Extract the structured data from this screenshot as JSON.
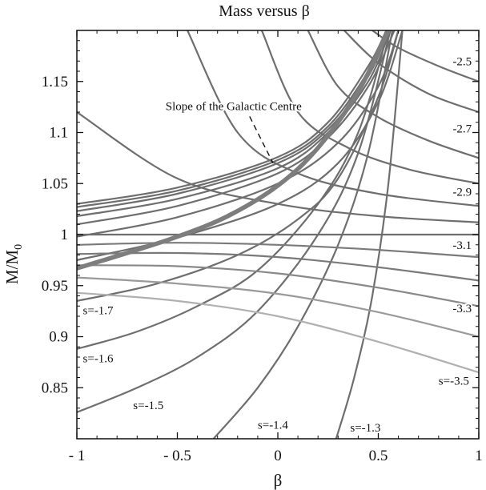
{
  "chart_data": {
    "type": "line",
    "title": "Mass versus β",
    "xlabel": "β",
    "ylabel": "M/M",
    "ylabel_sub": "0",
    "xlim": [
      -1,
      1
    ],
    "ylim": [
      0.8,
      1.2
    ],
    "xticks": [
      -1,
      -0.5,
      0,
      0.5,
      1
    ],
    "xtick_labels": [
      "- 1",
      "- 0.5",
      "0",
      "0.5",
      "1"
    ],
    "yticks": [
      0.85,
      0.9,
      0.95,
      1,
      1.05,
      1.1,
      1.15
    ],
    "ytick_labels": [
      "0.85",
      "0.9",
      "0.95",
      "1",
      "1.05",
      "1.1",
      "1.15"
    ],
    "grid": false,
    "annotation": {
      "text": "Slope of the Galactic Centre",
      "x": -0.22,
      "y": 1.122,
      "arrow_to": [
        0.0,
        1.07
      ]
    },
    "highlighted_series": {
      "name": "",
      "color": "#7d7d7d",
      "x": [
        -1,
        -0.75,
        -0.5,
        -0.25,
        0,
        0.2,
        0.4,
        0.55
      ],
      "y": [
        0.967,
        0.982,
        0.998,
        1.018,
        1.048,
        1.085,
        1.14,
        1.2
      ]
    },
    "series": [
      {
        "label": "s=-1.3",
        "color": "#6e6e6e",
        "x": [
          0.29,
          0.38,
          0.47,
          0.55,
          0.62
        ],
        "y": [
          0.8,
          0.86,
          0.94,
          1.05,
          1.2
        ]
      },
      {
        "label": "s=-1.4",
        "color": "#6e6e6e",
        "x": [
          -0.32,
          -0.1,
          0.1,
          0.3,
          0.45,
          0.57
        ],
        "y": [
          0.8,
          0.85,
          0.91,
          0.99,
          1.08,
          1.2
        ]
      },
      {
        "label": "s=-1.5",
        "color": "#6e6e6e",
        "x": [
          -1,
          -0.7,
          -0.4,
          -0.1,
          0.2,
          0.4,
          0.56
        ],
        "y": [
          0.826,
          0.85,
          0.88,
          0.925,
          1.0,
          1.08,
          1.2
        ]
      },
      {
        "label": "s=-1.6",
        "color": "#6e6e6e",
        "x": [
          -1,
          -0.7,
          -0.4,
          -0.1,
          0.2,
          0.4,
          0.55
        ],
        "y": [
          0.888,
          0.905,
          0.93,
          0.965,
          1.03,
          1.1,
          1.2
        ]
      },
      {
        "label": "s=-1.7",
        "color": "#6e6e6e",
        "x": [
          -1,
          -0.6,
          -0.2,
          0.1,
          0.3,
          0.5,
          0.6
        ],
        "y": [
          0.935,
          0.952,
          0.98,
          1.015,
          1.055,
          1.135,
          1.2
        ]
      },
      {
        "label": "",
        "color": "#6e6e6e",
        "x": [
          -1,
          -0.5,
          0,
          0.3,
          0.5,
          0.62
        ],
        "y": [
          0.975,
          0.997,
          1.03,
          1.07,
          1.13,
          1.2
        ]
      },
      {
        "label": "",
        "color": "#6e6e6e",
        "x": [
          -1,
          -0.5,
          0,
          0.3,
          0.5,
          0.6
        ],
        "y": [
          0.998,
          1.017,
          1.05,
          1.09,
          1.145,
          1.2
        ]
      },
      {
        "label": "",
        "color": "#6e6e6e",
        "x": [
          -1,
          -0.5,
          0,
          0.25,
          0.45,
          0.58
        ],
        "y": [
          1.01,
          1.028,
          1.06,
          1.095,
          1.145,
          1.2
        ]
      },
      {
        "label": "",
        "color": "#6e6e6e",
        "x": [
          -1,
          -0.5,
          0,
          0.25,
          0.45,
          0.56
        ],
        "y": [
          1.018,
          1.035,
          1.065,
          1.1,
          1.15,
          1.2
        ]
      },
      {
        "label": "",
        "color": "#6e6e6e",
        "x": [
          -1,
          -0.5,
          0,
          0.25,
          0.45,
          0.55
        ],
        "y": [
          1.023,
          1.04,
          1.07,
          1.103,
          1.155,
          1.2
        ]
      },
      {
        "label": "",
        "color": "#6e6e6e",
        "x": [
          -1,
          -0.5,
          0,
          0.25,
          0.45,
          0.54
        ],
        "y": [
          1.027,
          1.043,
          1.073,
          1.106,
          1.16,
          1.2
        ]
      },
      {
        "label": "",
        "color": "#6e6e6e",
        "x": [
          -1,
          -0.5,
          0,
          0.25,
          0.45,
          0.54
        ],
        "y": [
          1.03,
          1.046,
          1.076,
          1.11,
          1.165,
          1.2
        ]
      },
      {
        "label": "-2.5",
        "color": "#6e6e6e",
        "x": [
          0.47,
          0.6,
          0.8,
          1.0
        ],
        "y": [
          1.2,
          1.183,
          1.165,
          1.15
        ]
      },
      {
        "label": "",
        "color": "#6e6e6e",
        "x": [
          0.33,
          0.5,
          0.75,
          1.0
        ],
        "y": [
          1.2,
          1.168,
          1.138,
          1.12
        ]
      },
      {
        "label": "-2.7",
        "color": "#6e6e6e",
        "x": [
          0.15,
          0.3,
          0.5,
          0.75,
          1.0
        ],
        "y": [
          1.2,
          1.145,
          1.115,
          1.092,
          1.075
        ]
      },
      {
        "label": "",
        "color": "#6e6e6e",
        "x": [
          -0.08,
          0.1,
          0.35,
          0.65,
          1.0
        ],
        "y": [
          1.2,
          1.12,
          1.085,
          1.064,
          1.05
        ]
      },
      {
        "label": "-2.9",
        "color": "#6e6e6e",
        "x": [
          -0.45,
          -0.2,
          0.1,
          0.5,
          1.0
        ],
        "y": [
          1.2,
          1.1,
          1.06,
          1.04,
          1.028
        ]
      },
      {
        "label": "",
        "color": "#6e6e6e",
        "x": [
          -1,
          -0.5,
          0,
          0.5,
          1.0
        ],
        "y": [
          1.12,
          1.055,
          1.03,
          1.018,
          1.012
        ]
      },
      {
        "label": "-3.1",
        "color": "#6e6e6e",
        "x": [
          -1,
          1
        ],
        "y": [
          1.0,
          1.0
        ]
      },
      {
        "label": "",
        "color": "#7a7a7a",
        "x": [
          -1,
          -0.5,
          0,
          0.5,
          1.0
        ],
        "y": [
          0.99,
          0.992,
          0.99,
          0.985,
          0.978
        ]
      },
      {
        "label": "",
        "color": "#7a7a7a",
        "x": [
          -1,
          -0.5,
          0,
          0.5,
          1.0
        ],
        "y": [
          0.981,
          0.982,
          0.978,
          0.968,
          0.955
        ]
      },
      {
        "label": "-3.3",
        "color": "#888888",
        "x": [
          -1,
          -0.5,
          0,
          0.5,
          1.0
        ],
        "y": [
          0.97,
          0.969,
          0.962,
          0.948,
          0.93
        ]
      },
      {
        "label": "",
        "color": "#9a9a9a",
        "x": [
          -1,
          -0.5,
          0,
          0.5,
          1.0
        ],
        "y": [
          0.958,
          0.952,
          0.942,
          0.924,
          0.9
        ]
      },
      {
        "label": "-3.5",
        "color": "#b0b0b0",
        "x": [
          -1,
          -0.5,
          0,
          0.5,
          1.0
        ],
        "y": [
          0.943,
          0.935,
          0.92,
          0.895,
          0.865
        ]
      }
    ],
    "curve_labels": [
      {
        "text": "s=-1.7",
        "x": -0.97,
        "y": 0.922
      },
      {
        "text": "s=-1.6",
        "x": -0.97,
        "y": 0.875
      },
      {
        "text": "s=-1.5",
        "x": -0.72,
        "y": 0.829
      },
      {
        "text": "s=-1.4",
        "x": -0.1,
        "y": 0.81
      },
      {
        "text": "s=-1.3",
        "x": 0.36,
        "y": 0.807
      },
      {
        "text": "-2.5",
        "x": 0.87,
        "y": 1.166
      },
      {
        "text": "-2.7",
        "x": 0.87,
        "y": 1.1
      },
      {
        "text": "-2.9",
        "x": 0.87,
        "y": 1.038
      },
      {
        "text": "-3.1",
        "x": 0.87,
        "y": 0.986
      },
      {
        "text": "-3.3",
        "x": 0.87,
        "y": 0.924
      },
      {
        "text": "s=-3.5",
        "x": 0.8,
        "y": 0.853
      }
    ]
  }
}
